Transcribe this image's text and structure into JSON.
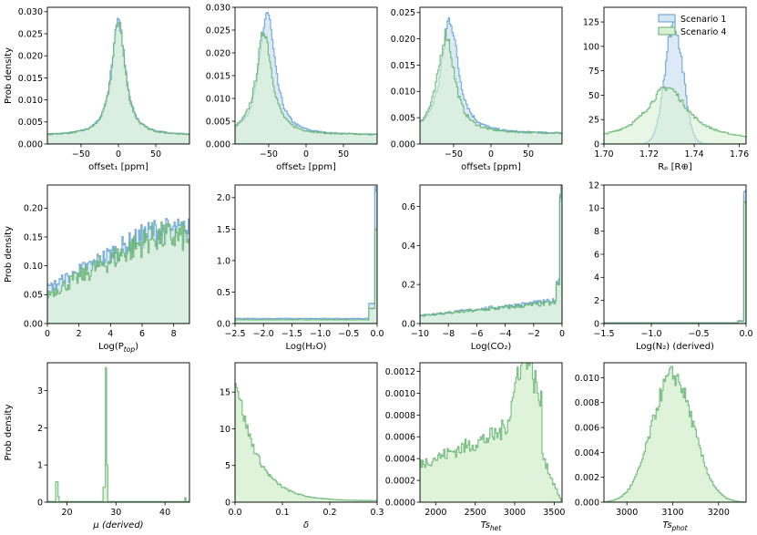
{
  "figure": {
    "ylabel_text": "Prob density",
    "legend": [
      {
        "label": "Scenario 1",
        "fill": "#d6e6f5",
        "edge": "#5b9bd5"
      },
      {
        "label": "Scenario 4",
        "fill": "#d9f1d3",
        "edge": "#5fb06a"
      }
    ]
  },
  "chart_data": [
    {
      "type": "histogram",
      "xlabel": "offset₁ [ppm]",
      "ylabel": "Prob density",
      "xlim": [
        -95,
        95
      ],
      "ylim": [
        0,
        0.031
      ],
      "xticks": [
        -50,
        0,
        50
      ],
      "xtick_labels": [
        "−50",
        "0",
        "50"
      ],
      "yticks": [
        0,
        0.005,
        0.01,
        0.015,
        0.02,
        0.025,
        0.03
      ],
      "ytick_labels": [
        "0.000",
        "0.005",
        "0.010",
        "0.015",
        "0.020",
        "0.025",
        "0.030"
      ],
      "series": [
        {
          "name": "Scenario 1",
          "dist": "peak",
          "center": 0,
          "width": 11,
          "peak": 0.029,
          "base": 0.002,
          "noise": 0.06
        },
        {
          "name": "Scenario 4",
          "dist": "peak",
          "center": 0,
          "width": 11,
          "peak": 0.028,
          "base": 0.002,
          "noise": 0.06
        }
      ]
    },
    {
      "type": "histogram",
      "xlabel": "offset₂ [ppm]",
      "ylabel": "",
      "xlim": [
        -95,
        95
      ],
      "ylim": [
        0,
        0.03
      ],
      "xticks": [
        -50,
        0,
        50
      ],
      "xtick_labels": [
        "−50",
        "0",
        "50"
      ],
      "yticks": [
        0,
        0.005,
        0.01,
        0.015,
        0.02,
        0.025,
        0.03
      ],
      "ytick_labels": [
        "0.000",
        "0.005",
        "0.010",
        "0.015",
        "0.020",
        "0.025",
        "0.030"
      ],
      "series": [
        {
          "name": "Scenario 1",
          "dist": "peak",
          "center": -52,
          "width": 13,
          "peak": 0.029,
          "base": 0.002,
          "noise": 0.06
        },
        {
          "name": "Scenario 4",
          "dist": "peak",
          "center": -56,
          "width": 13,
          "peak": 0.025,
          "base": 0.002,
          "noise": 0.06
        }
      ]
    },
    {
      "type": "histogram",
      "xlabel": "offset₃ [ppm]",
      "ylabel": "",
      "xlim": [
        -95,
        95
      ],
      "ylim": [
        0,
        0.026
      ],
      "xticks": [
        -50,
        0,
        50
      ],
      "xtick_labels": [
        "−50",
        "0",
        "50"
      ],
      "yticks": [
        0,
        0.005,
        0.01,
        0.015,
        0.02,
        0.025
      ],
      "ytick_labels": [
        "0.000",
        "0.005",
        "0.010",
        "0.015",
        "0.020",
        "0.025"
      ],
      "series": [
        {
          "name": "Scenario 1",
          "dist": "peak",
          "center": -55,
          "width": 14,
          "peak": 0.024,
          "base": 0.002,
          "noise": 0.07
        },
        {
          "name": "Scenario 4",
          "dist": "peak",
          "center": -60,
          "width": 14,
          "peak": 0.021,
          "base": 0.002,
          "noise": 0.07
        }
      ]
    },
    {
      "type": "histogram",
      "xlabel": "Rₚ [R⊕]",
      "ylabel": "",
      "xlim": [
        1.7,
        1.763
      ],
      "ylim": [
        0,
        140
      ],
      "xticks": [
        1.7,
        1.72,
        1.74,
        1.76
      ],
      "xtick_labels": [
        "1.70",
        "1.72",
        "1.74",
        "1.76"
      ],
      "yticks": [
        0,
        25,
        50,
        75,
        100,
        125
      ],
      "ytick_labels": [
        "0",
        "25",
        "50",
        "75",
        "100",
        "125"
      ],
      "legend": true,
      "series": [
        {
          "name": "Scenario 1",
          "dist": "narrow",
          "center": 1.731,
          "width": 0.004,
          "peak": 125,
          "base": 0,
          "noise": 0.08
        },
        {
          "name": "Scenario 4",
          "dist": "wide",
          "center": 1.728,
          "width": 0.011,
          "peak": 55,
          "base": 3,
          "noise": 0.06
        }
      ]
    },
    {
      "type": "histogram",
      "xlabel": "Log(P_top)",
      "ylabel": "Prob density",
      "xlim": [
        0,
        9
      ],
      "ylim": [
        0,
        0.24
      ],
      "xticks": [
        0,
        2,
        4,
        6,
        8
      ],
      "xtick_labels": [
        "0",
        "2",
        "4",
        "6",
        "8"
      ],
      "yticks": [
        0,
        0.05,
        0.1,
        0.15,
        0.2
      ],
      "ytick_labels": [
        "0.00",
        "0.05",
        "0.10",
        "0.15",
        "0.20"
      ],
      "series": [
        {
          "name": "Scenario 1",
          "dist": "rise",
          "start": 0.06,
          "end": 0.16,
          "noise": 0.15
        },
        {
          "name": "Scenario 4",
          "dist": "rise",
          "start": 0.05,
          "end": 0.15,
          "noise": 0.18
        }
      ]
    },
    {
      "type": "histogram",
      "xlabel": "Log(H₂O)",
      "ylabel": "",
      "xlim": [
        -2.5,
        0
      ],
      "ylim": [
        0,
        2.2
      ],
      "xticks": [
        -2.5,
        -2.0,
        -1.5,
        -1.0,
        -0.5,
        0.0
      ],
      "xtick_labels": [
        "−2.5",
        "−2.0",
        "−1.5",
        "−1.0",
        "−0.5",
        "0.0"
      ],
      "yticks": [
        0,
        0.5,
        1.0,
        1.5,
        2.0
      ],
      "ytick_labels": [
        "0.0",
        "0.5",
        "1.0",
        "1.5",
        "2.0"
      ],
      "series": [
        {
          "name": "Scenario 1",
          "dist": "wall",
          "base": 0.08,
          "spike": 2.12,
          "noise": 0.05
        },
        {
          "name": "Scenario 4",
          "dist": "wall",
          "base": 0.06,
          "spike": 1.55,
          "noise": 0.05
        }
      ]
    },
    {
      "type": "histogram",
      "xlabel": "Log(CO₂)",
      "ylabel": "",
      "xlim": [
        -10,
        0
      ],
      "ylim": [
        0,
        0.71
      ],
      "xticks": [
        -10,
        -8,
        -6,
        -4,
        -2,
        0
      ],
      "xtick_labels": [
        "−10",
        "−8",
        "−6",
        "−4",
        "−2",
        "0"
      ],
      "yticks": [
        0,
        0.2,
        0.4,
        0.6
      ],
      "ytick_labels": [
        "0.0",
        "0.2",
        "0.4",
        "0.6"
      ],
      "series": [
        {
          "name": "Scenario 1",
          "dist": "ramp",
          "start": 0.04,
          "end": 0.12,
          "spike": 0.7,
          "noise": 0.12
        },
        {
          "name": "Scenario 4",
          "dist": "ramp",
          "start": 0.04,
          "end": 0.11,
          "spike": 0.68,
          "noise": 0.12
        }
      ]
    },
    {
      "type": "histogram",
      "xlabel": "Log(N₂) (derived)",
      "ylabel": "",
      "xlim": [
        -1.5,
        0
      ],
      "ylim": [
        0,
        12
      ],
      "xticks": [
        -1.5,
        -1.0,
        -0.5,
        0.0
      ],
      "xtick_labels": [
        "−1.5",
        "−1.0",
        "−0.5",
        "0.0"
      ],
      "yticks": [
        0,
        2,
        4,
        6,
        8,
        10,
        12
      ],
      "ytick_labels": [
        "0",
        "2",
        "4",
        "6",
        "8",
        "10",
        "12"
      ],
      "series": [
        {
          "name": "Scenario 1",
          "dist": "wall",
          "base": 0.06,
          "spike": 11.0,
          "noise": 0.05
        },
        {
          "name": "Scenario 4",
          "dist": "wall",
          "base": 0.05,
          "spike": 10.1,
          "noise": 0.05
        }
      ]
    },
    {
      "type": "histogram",
      "xlabel": "μ (derived)",
      "ylabel": "Prob density",
      "xlim": [
        16,
        45
      ],
      "ylim": [
        0,
        3.75
      ],
      "xticks": [
        20,
        30,
        40
      ],
      "xtick_labels": [
        "20",
        "30",
        "40"
      ],
      "yticks": [
        0,
        1,
        2,
        3
      ],
      "ytick_labels": [
        "0",
        "1",
        "2",
        "3"
      ],
      "series": [
        {
          "name": "Scenario 4",
          "dist": "spikes",
          "points": [
            [
              17.9,
              0.55
            ],
            [
              18.3,
              0.15
            ],
            [
              27.9,
              3.62
            ],
            [
              28.2,
              1.0
            ],
            [
              27.6,
              0.4
            ],
            [
              44.2,
              0.12
            ]
          ],
          "noise": 0
        }
      ]
    },
    {
      "type": "histogram",
      "xlabel": "δ",
      "ylabel": "",
      "xlim": [
        0,
        0.3
      ],
      "ylim": [
        0,
        19
      ],
      "xticks": [
        0,
        0.1,
        0.2,
        0.3
      ],
      "xtick_labels": [
        "0.0",
        "0.1",
        "0.2",
        "0.3"
      ],
      "yticks": [
        0,
        5,
        10,
        15
      ],
      "ytick_labels": [
        "0",
        "5",
        "10",
        "15"
      ],
      "series": [
        {
          "name": "Scenario 4",
          "dist": "decay",
          "peak": 17.5,
          "scale": 0.045,
          "noise": 0.08
        }
      ]
    },
    {
      "type": "histogram",
      "xlabel": "Ts_het",
      "ylabel": "",
      "xlim": [
        1800,
        3600
      ],
      "ylim": [
        0,
        0.00128
      ],
      "xticks": [
        2000,
        2500,
        3000,
        3500
      ],
      "xtick_labels": [
        "2000",
        "2500",
        "3000",
        "3500"
      ],
      "yticks": [
        0,
        0.0002,
        0.0004,
        0.0006,
        0.0008,
        0.001,
        0.0012
      ],
      "ytick_labels": [
        "0.0000",
        "0.0002",
        "0.0004",
        "0.0006",
        "0.0008",
        "0.0010",
        "0.0012"
      ],
      "series": [
        {
          "name": "Scenario 4",
          "dist": "bimodal",
          "noise": 0.14
        }
      ]
    },
    {
      "type": "histogram",
      "xlabel": "Ts_phot",
      "ylabel": "",
      "xlim": [
        2950,
        3260
      ],
      "ylim": [
        0,
        0.0112
      ],
      "xticks": [
        3000,
        3100,
        3200
      ],
      "xtick_labels": [
        "3000",
        "3100",
        "3200"
      ],
      "yticks": [
        0,
        0.002,
        0.004,
        0.006,
        0.008,
        0.01
      ],
      "ytick_labels": [
        "0.000",
        "0.002",
        "0.004",
        "0.006",
        "0.008",
        "0.010"
      ],
      "series": [
        {
          "name": "Scenario 4",
          "dist": "gauss",
          "center": 3100,
          "width": 45,
          "peak": 0.0102,
          "noise": 0.08
        }
      ]
    }
  ]
}
